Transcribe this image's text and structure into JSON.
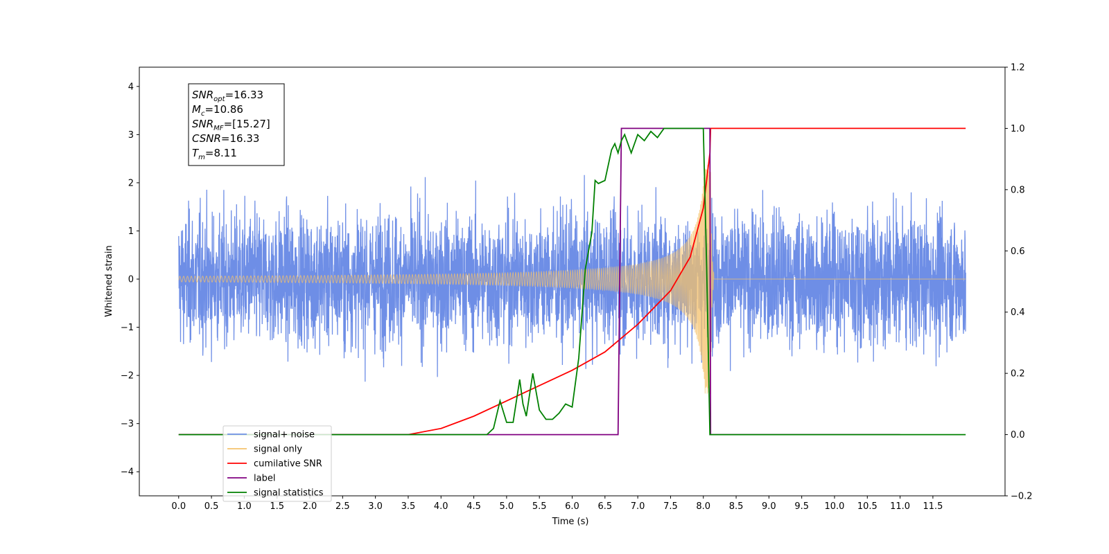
{
  "chart_data": {
    "type": "line",
    "xlabel": "Time (s)",
    "ylabel": "Whitened strain",
    "xlim": [
      -0.6,
      12.6
    ],
    "ylim": [
      -4.5,
      4.4
    ],
    "y2lim": [
      -0.2,
      1.2
    ],
    "x_ticks": [
      "0.0",
      "0.5",
      "1.0",
      "1.5",
      "2.0",
      "2.5",
      "3.0",
      "3.5",
      "4.0",
      "4.5",
      "5.0",
      "5.5",
      "6.0",
      "6.5",
      "7.0",
      "7.5",
      "8.0",
      "8.5",
      "9.0",
      "9.5",
      "10.0",
      "10.5",
      "11.0",
      "11.5"
    ],
    "y_ticks": [
      "4",
      "3",
      "2",
      "1",
      "0",
      "−1",
      "−2",
      "−3",
      "−4"
    ],
    "y2_ticks": [
      "1.2",
      "1.0",
      "0.8",
      "0.6",
      "0.4",
      "0.2",
      "0.0",
      "−0.2"
    ],
    "info_box": [
      {
        "label": "SNR",
        "sub": "opt",
        "value": "=16.33"
      },
      {
        "label": "M",
        "sub": "c",
        "value": "=10.86"
      },
      {
        "label": "SNR",
        "sub": "MF",
        "value": "=[15.27]"
      },
      {
        "label": "CSNR",
        "sub": "",
        "value": "=16.33"
      },
      {
        "label": "T",
        "sub": "m",
        "value": "=8.11"
      }
    ],
    "legend_placement": "lower-left",
    "series": [
      {
        "name": "signal+ noise",
        "color": "#6e8ee6",
        "axis": "left",
        "kind": "noise",
        "x_range": [
          0.0,
          12.0
        ],
        "envelope_approx": [
          -2.6,
          2.6
        ]
      },
      {
        "name": "signal only",
        "color": "#f5c26b",
        "axis": "left",
        "kind": "chirp",
        "merger_time": 8.11,
        "peak_amplitude": 2.4
      },
      {
        "name": "cumilative SNR",
        "color": "#ff0000",
        "axis": "right",
        "x": [
          0.0,
          3.5,
          4.0,
          4.5,
          5.0,
          5.5,
          6.0,
          6.5,
          7.0,
          7.5,
          7.8,
          8.0,
          8.1,
          8.11,
          12.0
        ],
        "y": [
          0.0,
          0.0,
          0.02,
          0.06,
          0.11,
          0.16,
          0.21,
          0.27,
          0.36,
          0.47,
          0.58,
          0.74,
          0.92,
          1.0,
          1.0
        ]
      },
      {
        "name": "label",
        "color": "#800080",
        "axis": "right",
        "x": [
          0.0,
          6.7,
          6.75,
          8.1,
          8.11,
          11.0
        ],
        "y": [
          0.0,
          0.0,
          1.0,
          1.0,
          0.0,
          0.0
        ]
      },
      {
        "name": "signal statistics",
        "color": "#008000",
        "axis": "right",
        "x": [
          0.0,
          4.7,
          4.8,
          4.9,
          5.0,
          5.1,
          5.2,
          5.25,
          5.3,
          5.4,
          5.5,
          5.6,
          5.7,
          5.8,
          5.9,
          6.0,
          6.1,
          6.2,
          6.3,
          6.35,
          6.4,
          6.5,
          6.6,
          6.65,
          6.7,
          6.75,
          6.8,
          6.9,
          7.0,
          7.1,
          7.2,
          7.3,
          7.4,
          7.5,
          7.6,
          7.7,
          7.8,
          7.9,
          8.0,
          8.05,
          8.1,
          8.11,
          12.0
        ],
        "y": [
          0.0,
          0.0,
          0.02,
          0.11,
          0.04,
          0.04,
          0.18,
          0.1,
          0.06,
          0.2,
          0.08,
          0.05,
          0.05,
          0.07,
          0.1,
          0.09,
          0.25,
          0.54,
          0.66,
          0.83,
          0.82,
          0.83,
          0.93,
          0.95,
          0.92,
          0.96,
          0.98,
          0.92,
          0.98,
          0.96,
          0.99,
          0.97,
          1.0,
          1.0,
          1.0,
          1.0,
          1.0,
          1.0,
          1.0,
          0.55,
          0.0,
          0.0,
          0.0
        ]
      }
    ]
  }
}
